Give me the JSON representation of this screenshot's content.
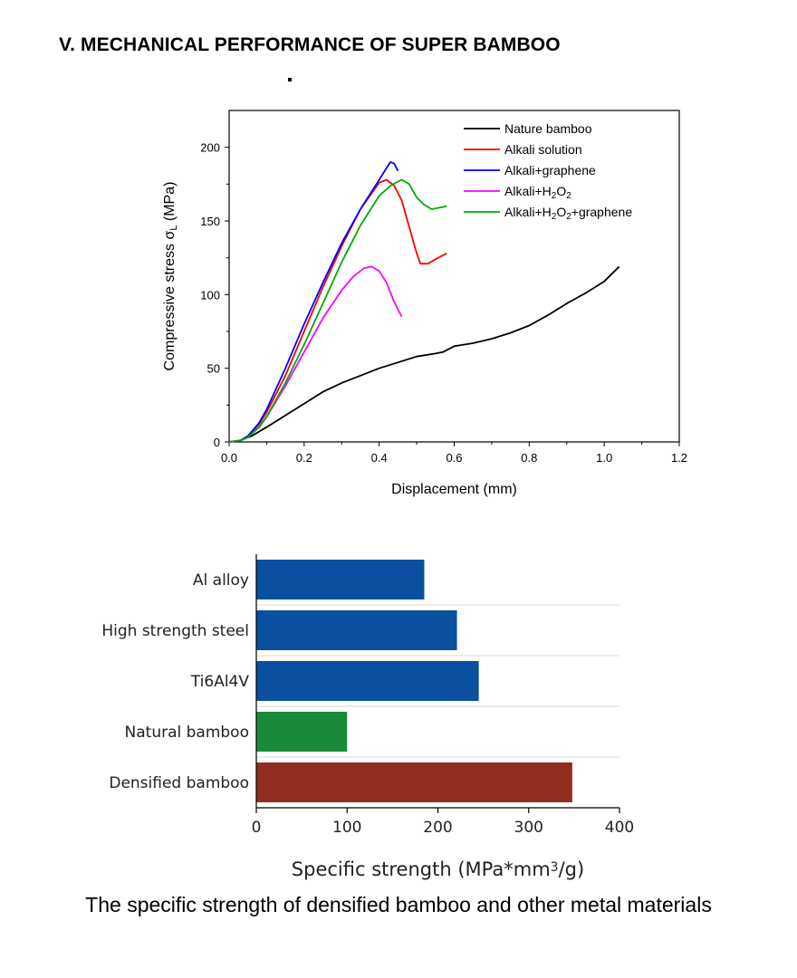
{
  "page": {
    "title": "V. MECHANICAL PERFORMANCE OF SUPER BAMBOO",
    "caption": "The specific strength of densified bamboo and other metal materials"
  },
  "chart_data": [
    {
      "type": "line",
      "title": "",
      "xlabel": "Displacement (mm)",
      "ylabel": "Compressive stress σL (MPa)",
      "xlim": [
        0,
        1.2
      ],
      "ylim": [
        0,
        225
      ],
      "xticks": [
        0.0,
        0.2,
        0.4,
        0.6,
        0.8,
        1.0,
        1.2
      ],
      "xtick_labels": [
        "0.0",
        "0.2",
        "0.4",
        "0.6",
        "0.8",
        "1.0",
        "1.2"
      ],
      "yticks": [
        0,
        50,
        100,
        150,
        200
      ],
      "ytick_labels": [
        "0",
        "50",
        "100",
        "150",
        "200"
      ],
      "legend_position": "top-right",
      "series": [
        {
          "name": "Nature bamboo",
          "color": "#000000",
          "x": [
            0,
            0.03,
            0.06,
            0.1,
            0.15,
            0.2,
            0.25,
            0.3,
            0.35,
            0.4,
            0.45,
            0.5,
            0.55,
            0.57,
            0.6,
            0.65,
            0.7,
            0.75,
            0.8,
            0.85,
            0.9,
            0.95,
            1.0,
            1.04
          ],
          "y": [
            0,
            1,
            4,
            10,
            18,
            26,
            34,
            40,
            45,
            50,
            54,
            58,
            60,
            61,
            65,
            67,
            70,
            74,
            79,
            86,
            94,
            101,
            109,
            119
          ]
        },
        {
          "name": "Alkali solution",
          "color": "#ff0000",
          "x": [
            0,
            0.03,
            0.05,
            0.08,
            0.1,
            0.15,
            0.2,
            0.25,
            0.3,
            0.35,
            0.4,
            0.42,
            0.44,
            0.46,
            0.48,
            0.5,
            0.51,
            0.53,
            0.55,
            0.58
          ],
          "y": [
            0,
            1,
            4,
            12,
            20,
            45,
            75,
            105,
            133,
            158,
            176,
            178,
            174,
            164,
            146,
            128,
            121,
            121,
            124,
            128
          ]
        },
        {
          "name": "Alkali+graphene",
          "color": "#0000ff",
          "x": [
            0,
            0.03,
            0.05,
            0.08,
            0.1,
            0.15,
            0.2,
            0.25,
            0.3,
            0.35,
            0.4,
            0.42,
            0.43,
            0.44,
            0.45
          ],
          "y": [
            0,
            1,
            4,
            13,
            22,
            50,
            80,
            108,
            135,
            158,
            178,
            186,
            190,
            189,
            184
          ]
        },
        {
          "name": "Alkali+H₂O₂",
          "color": "#ff00ff",
          "x": [
            0,
            0.03,
            0.05,
            0.08,
            0.1,
            0.15,
            0.2,
            0.25,
            0.3,
            0.33,
            0.36,
            0.38,
            0.4,
            0.42,
            0.44,
            0.46
          ],
          "y": [
            0,
            1,
            3,
            10,
            17,
            38,
            61,
            84,
            103,
            112,
            118,
            119,
            116,
            108,
            95,
            85
          ]
        },
        {
          "name": "Alkali+H₂O₂+graphene",
          "color": "#00aa00",
          "x": [
            0,
            0.03,
            0.05,
            0.08,
            0.1,
            0.15,
            0.2,
            0.25,
            0.3,
            0.35,
            0.4,
            0.43,
            0.46,
            0.48,
            0.5,
            0.52,
            0.54,
            0.56,
            0.58
          ],
          "y": [
            0,
            1,
            3,
            10,
            17,
            40,
            66,
            94,
            122,
            147,
            167,
            174,
            178,
            175,
            166,
            161,
            158,
            159,
            160
          ]
        }
      ]
    },
    {
      "type": "bar",
      "orientation": "horizontal",
      "title": "",
      "xlabel": "Specific strength (MPa*mm³/g)",
      "ylabel": "",
      "xlim": [
        0,
        400
      ],
      "xticks": [
        0,
        100,
        200,
        300,
        400
      ],
      "xtick_labels": [
        "0",
        "100",
        "200",
        "300",
        "400"
      ],
      "categories": [
        "Al alloy",
        "High strength steel",
        "Ti6Al4V",
        "Natural bamboo",
        "Densified bamboo"
      ],
      "values": [
        185,
        221,
        245,
        100,
        348
      ],
      "colors": [
        "#0a4fa0",
        "#0a4fa0",
        "#0a4fa0",
        "#1a8a3a",
        "#922d22"
      ]
    }
  ]
}
